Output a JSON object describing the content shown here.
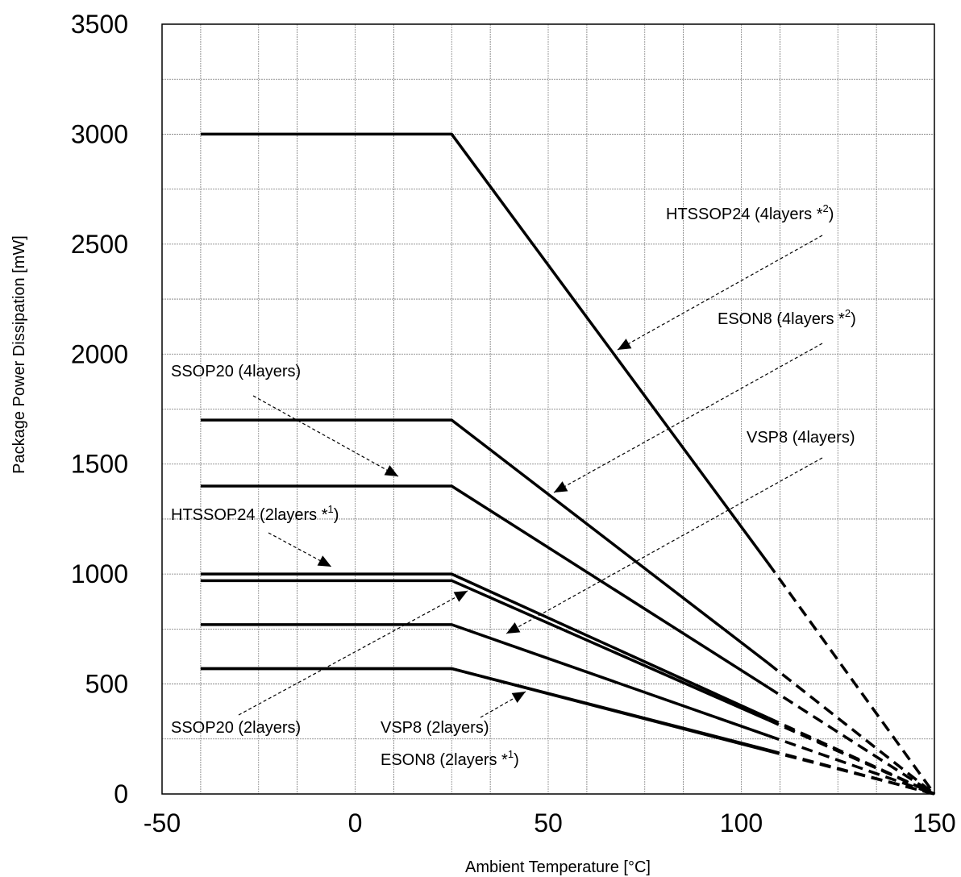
{
  "chart_data": {
    "type": "line",
    "title": "",
    "xlabel": "Ambient Temperature [°C]",
    "ylabel": "Package Power Dissipation [mW]",
    "xlim": [
      -50,
      150
    ],
    "ylim": [
      0,
      3500
    ],
    "xticks": [
      "-50",
      "0",
      "50",
      "100",
      "150"
    ],
    "yticks": [
      "0",
      "500",
      "1000",
      "1500",
      "2000",
      "2500",
      "3000",
      "3500"
    ],
    "grid": true,
    "series": [
      {
        "name": "HTSSOP24 (4layers *2)",
        "points": [
          [
            -40,
            3000
          ],
          [
            25,
            3000
          ],
          [
            107,
            1048
          ]
        ],
        "dashed_to": [
          150,
          0
        ]
      },
      {
        "name": "SSOP20 (4layers)",
        "points": [
          [
            -40,
            1700
          ],
          [
            25,
            1700
          ],
          [
            107,
            594
          ]
        ],
        "dashed_to": [
          150,
          0
        ]
      },
      {
        "name": "ESON8 (4layers *2)",
        "points": [
          [
            -40,
            1400
          ],
          [
            25,
            1400
          ],
          [
            107,
            484
          ]
        ],
        "dashed_to": [
          150,
          0
        ]
      },
      {
        "name": "HTSSOP24 (2layers *1)",
        "points": [
          [
            -40,
            1000
          ],
          [
            25,
            1000
          ],
          [
            107,
            346
          ]
        ],
        "dashed_to": [
          150,
          0
        ]
      },
      {
        "name": "VSP8 (4layers)",
        "points": [
          [
            -40,
            970
          ],
          [
            25,
            970
          ],
          [
            107,
            336
          ]
        ],
        "dashed_to": [
          150,
          0
        ]
      },
      {
        "name": "SSOP20 (2layers)",
        "points": [
          [
            -40,
            770
          ],
          [
            25,
            770
          ],
          [
            107,
            265
          ]
        ],
        "dashed_to": [
          150,
          0
        ]
      },
      {
        "name": "VSP8 (2layers)",
        "points": [
          [
            -40,
            570
          ],
          [
            25,
            570
          ],
          [
            107,
            200
          ]
        ],
        "dashed_to": [
          150,
          0
        ]
      },
      {
        "name": "ESON8 (2layers *1)",
        "points": [
          [
            -40,
            570
          ],
          [
            25,
            570
          ],
          [
            107,
            196
          ]
        ],
        "dashed_to": [
          150,
          0
        ]
      }
    ],
    "annotations": [
      {
        "id": "htssop24_4",
        "text": "HTSSOP24 (4layers *",
        "sup": "2",
        "tail": ")"
      },
      {
        "id": "eson8_4",
        "text": "ESON8 (4layers *",
        "sup": "2",
        "tail": ")"
      },
      {
        "id": "ssop20_4",
        "text": "SSOP20 (4layers)",
        "sup": "",
        "tail": ""
      },
      {
        "id": "vsp8_4",
        "text": "VSP8 (4layers)",
        "sup": "",
        "tail": ""
      },
      {
        "id": "htssop24_2",
        "text": "HTSSOP24 (2layers *",
        "sup": "1",
        "tail": ")"
      },
      {
        "id": "ssop20_2",
        "text": "SSOP20 (2layers)",
        "sup": "",
        "tail": ""
      },
      {
        "id": "vsp8_2",
        "text": "VSP8 (2layers)",
        "sup": "",
        "tail": ""
      },
      {
        "id": "eson8_2",
        "text": "ESON8 (2layers *",
        "sup": "1",
        "tail": ")"
      }
    ]
  }
}
